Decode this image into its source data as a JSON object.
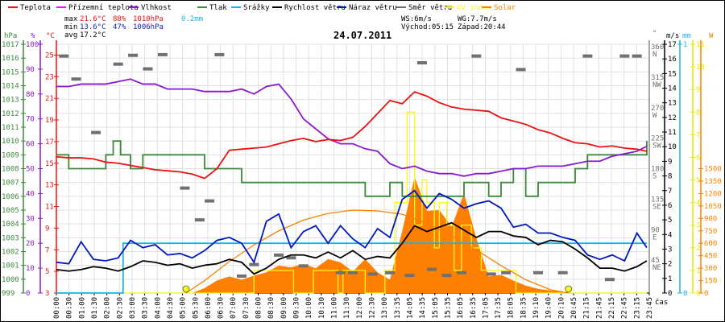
{
  "legend": [
    {
      "label": "Teplota",
      "color": "#ee1111"
    },
    {
      "label": "Přízemní teplota",
      "color": "#ee11ee"
    },
    {
      "label": "Vlhkost",
      "color": "#8a18d0"
    },
    {
      "label": "Tlak",
      "color": "#3a8a3a"
    },
    {
      "label": "Srážky",
      "color": "#18b4e8"
    },
    {
      "label": "Rychlost větru",
      "color": "#000000"
    },
    {
      "label": "Náraz větru",
      "color": "#0018c0"
    },
    {
      "label": "Směr větru",
      "color": "#707070"
    },
    {
      "label": "UV index",
      "color": "#f8f818"
    },
    {
      "label": "Solar",
      "color": "#ff8000"
    }
  ],
  "stats": {
    "max_label": "max",
    "max_temp": "21.6°C",
    "max_hum": "88%",
    "max_press": "1010hPa",
    "max_rain": "0.2mm",
    "min_label": "min",
    "min_temp": "13.6°C",
    "min_hum": "47%",
    "min_press": "1006hPa",
    "avg_label": "avg",
    "avg_temp": "17.2°C",
    "ws": "WS:6m/s",
    "wg": "WG:7.7m/s",
    "sunrise": "Východ:05:15",
    "sunset": "Západ:20:44"
  },
  "colors": {
    "temp": "#ee1111",
    "hum": "#8a18d0",
    "press": "#3a8a3a",
    "rain": "#18b4e8",
    "wind": "#000000",
    "gust": "#0018c0",
    "dir": "#707070",
    "uv": "#f8f818",
    "solar": "#ff8000",
    "solar_curve": "#ff8000",
    "grid": "#e0e0e0",
    "sun_marker": "#f8f818"
  },
  "chart_data": {
    "type": "line",
    "title": "24.07.2011",
    "xlabel": "čas",
    "x_ticks": [
      "00:00",
      "00:30",
      "01:00",
      "01:30",
      "02:00",
      "02:30",
      "03:00",
      "03:30",
      "04:00",
      "04:30",
      "05:00",
      "05:30",
      "06:00",
      "06:30",
      "07:00",
      "07:30",
      "08:00",
      "08:30",
      "09:00",
      "09:30",
      "10:00",
      "10:30",
      "11:00",
      "11:30",
      "12:00",
      "12:30",
      "13:00",
      "13:35",
      "14:05",
      "14:35",
      "15:05",
      "15:35",
      "16:05",
      "16:35",
      "17:05",
      "17:35",
      "18:05",
      "18:35",
      "19:10",
      "19:40",
      "20:10",
      "20:45",
      "21:15",
      "21:45",
      "22:15",
      "22:45",
      "23:15",
      "23:45"
    ],
    "axes": {
      "pressure": {
        "unit": "hPa",
        "range": [
          999,
          1017
        ],
        "ticks": [
          999,
          1000,
          1001,
          1002,
          1003,
          1004,
          1005,
          1006,
          1007,
          1008,
          1009,
          1010,
          1011,
          1012,
          1013,
          1014,
          1015,
          1016,
          1017
        ]
      },
      "humidity": {
        "unit": "%",
        "range": [
          0,
          100
        ],
        "ticks": [
          0,
          10,
          20,
          30,
          40,
          50,
          60,
          70,
          80,
          90,
          100
        ]
      },
      "temperature": {
        "unit": "°C",
        "range": [
          3,
          26
        ],
        "ticks": [
          3,
          5,
          7,
          9,
          11,
          13,
          15,
          17,
          19,
          21,
          23,
          25
        ]
      },
      "direction": {
        "unit": "°",
        "range": [
          0,
          360
        ],
        "ticks": [
          {
            "v": 45,
            "l": "NE"
          },
          {
            "v": 90,
            "l": "E"
          },
          {
            "v": 135,
            "l": "SE"
          },
          {
            "v": 180,
            "l": "S"
          },
          {
            "v": 225,
            "l": "SW"
          },
          {
            "v": 270,
            "l": "W"
          },
          {
            "v": 315,
            "l": "NW"
          },
          {
            "v": 360,
            "l": "N"
          }
        ]
      },
      "wind": {
        "unit": "m/s",
        "range": [
          0,
          17
        ],
        "ticks": [
          0,
          1,
          2,
          3,
          4,
          5,
          6,
          7,
          8,
          9,
          10,
          11,
          12,
          13,
          14,
          15,
          16,
          17
        ]
      },
      "rain": {
        "unit": "mm",
        "range": [
          0,
          1
        ],
        "ticks": [
          0,
          1
        ]
      },
      "uv": {
        "unit": "",
        "range": [
          0,
          11
        ],
        "ticks": [
          0,
          1,
          2,
          3,
          4,
          5,
          6,
          7,
          8,
          9,
          10,
          11
        ]
      },
      "solar": {
        "unit": "W",
        "range": [
          0,
          3000
        ],
        "ticks": [
          0,
          150,
          300,
          450,
          600,
          750,
          900,
          1050,
          1200,
          1350,
          1500
        ]
      }
    },
    "grid": true,
    "legend_position": "top",
    "series": [
      {
        "name": "Teplota",
        "axis": "temperature",
        "x": [
          0,
          0.5,
          1,
          1.5,
          2,
          2.5,
          3,
          3.5,
          4,
          4.5,
          5,
          5.5,
          6,
          6.5,
          7,
          7.5,
          8,
          8.5,
          9,
          9.5,
          10,
          10.5,
          11,
          11.5,
          12,
          12.5,
          13,
          13.5,
          14,
          14.5,
          15,
          15.5,
          16,
          16.5,
          17,
          17.5,
          18,
          18.5,
          19,
          19.5,
          20,
          20.5,
          21,
          21.5,
          22,
          22.5,
          23,
          23.5,
          23.9
        ],
        "values": [
          15.6,
          15.5,
          15.5,
          15.4,
          15.1,
          15.0,
          14.8,
          14.6,
          14.4,
          14.3,
          14.2,
          14.0,
          13.6,
          14.5,
          16.2,
          16.3,
          16.4,
          16.5,
          16.8,
          17.1,
          17.3,
          17.0,
          17.2,
          17.1,
          17.4,
          18.4,
          19.6,
          20.8,
          20.5,
          21.6,
          21.2,
          20.6,
          20.2,
          20.0,
          19.9,
          19.8,
          19.2,
          18.9,
          18.6,
          18.1,
          17.8,
          17.3,
          16.9,
          16.8,
          16.5,
          16.6,
          16.4,
          16.3,
          16.1
        ]
      },
      {
        "name": "Vlhkost",
        "axis": "humidity",
        "x": [
          0,
          0.5,
          1,
          1.5,
          2,
          2.5,
          3,
          3.5,
          4,
          4.5,
          5,
          5.5,
          6,
          6.5,
          7,
          7.5,
          8,
          8.5,
          9,
          9.5,
          10,
          10.5,
          11,
          11.5,
          12,
          12.5,
          13,
          13.5,
          14,
          14.5,
          15,
          15.5,
          16,
          16.5,
          17,
          17.5,
          18,
          18.5,
          19,
          19.5,
          20,
          20.5,
          21,
          21.5,
          22,
          22.5,
          23,
          23.5,
          23.9
        ],
        "values": [
          83,
          83,
          84,
          84,
          84,
          85,
          86,
          84,
          84,
          82,
          82,
          82,
          81,
          81,
          81,
          82,
          80,
          83,
          84,
          78,
          70,
          66,
          62,
          60,
          60,
          58,
          57,
          52,
          50,
          51,
          49,
          48,
          48,
          47,
          48,
          48,
          49,
          50,
          50,
          51,
          51,
          51,
          52,
          53,
          53,
          55,
          56,
          57,
          59
        ]
      },
      {
        "name": "Tlak",
        "axis": "pressure",
        "x": [
          0,
          0.3,
          0.5,
          1,
          1.5,
          2,
          2.3,
          2.6,
          3,
          3.5,
          4,
          4.5,
          5,
          5.5,
          6,
          6.5,
          7,
          7.5,
          8,
          8.5,
          9,
          9.5,
          10,
          10.5,
          11,
          11.5,
          12,
          12.5,
          13,
          13.5,
          14,
          14.5,
          15,
          15.5,
          16,
          16.5,
          17,
          17.5,
          18,
          18.5,
          19,
          19.5,
          20,
          20.5,
          21,
          21.5,
          22,
          22.5,
          23,
          23.5,
          23.9
        ],
        "values": [
          1009,
          1009,
          1008,
          1008,
          1008,
          1009,
          1010,
          1009,
          1008,
          1009,
          1009,
          1009,
          1009,
          1009,
          1008,
          1008,
          1008,
          1007,
          1007,
          1007,
          1007,
          1007,
          1007,
          1007,
          1007,
          1007,
          1007,
          1006,
          1006,
          1007,
          1006,
          1006,
          1006,
          1006,
          1006,
          1007,
          1007,
          1006,
          1007,
          1008,
          1006,
          1007,
          1007,
          1007,
          1008,
          1009,
          1009,
          1009,
          1009,
          1009,
          1010
        ]
      },
      {
        "name": "Srážky",
        "axis": "rain",
        "x": [
          0,
          2.6,
          2.7,
          23.9
        ],
        "values": [
          0,
          0,
          0.2,
          0.2
        ]
      },
      {
        "name": "Rychlost větru",
        "axis": "wind",
        "x": [
          0,
          0.5,
          1,
          1.5,
          2,
          2.5,
          3,
          3.5,
          4,
          4.5,
          5,
          5.5,
          6,
          6.5,
          7,
          7.5,
          8,
          8.5,
          9,
          9.5,
          10,
          10.5,
          11,
          11.5,
          12,
          12.5,
          13,
          13.5,
          14,
          14.5,
          15,
          15.5,
          16,
          16.5,
          17,
          17.5,
          18,
          18.5,
          19,
          19.5,
          20,
          20.5,
          21,
          21.5,
          22,
          22.5,
          23,
          23.5,
          23.9
        ],
        "values": [
          1.6,
          1.5,
          1.6,
          1.8,
          1.7,
          1.5,
          1.8,
          2.2,
          2.1,
          1.9,
          2.0,
          1.7,
          1.9,
          2.0,
          2.3,
          2.1,
          1.3,
          1.7,
          2.3,
          2.6,
          2.6,
          2.4,
          2.8,
          2.4,
          2.9,
          2.3,
          2.5,
          2.4,
          3.4,
          4.6,
          4.2,
          4.5,
          4.8,
          4.3,
          3.8,
          4.2,
          4.2,
          3.9,
          3.8,
          3.3,
          3.6,
          3.5,
          3.0,
          2.4,
          1.7,
          1.7,
          1.5,
          1.8,
          2.2
        ]
      },
      {
        "name": "Náraz větru",
        "axis": "wind",
        "x": [
          0,
          0.5,
          1,
          1.5,
          2,
          2.5,
          3,
          3.5,
          4,
          4.5,
          5,
          5.5,
          6,
          6.5,
          7,
          7.5,
          8,
          8.5,
          9,
          9.5,
          10,
          10.5,
          11,
          11.5,
          12,
          12.5,
          13,
          13.5,
          14,
          14.5,
          15,
          15.5,
          16,
          16.5,
          17,
          17.5,
          18,
          18.5,
          19,
          19.5,
          20,
          20.5,
          21,
          21.5,
          22,
          22.5,
          23,
          23.5,
          23.9
        ],
        "values": [
          2.1,
          2.0,
          3.5,
          2.3,
          2.2,
          2.4,
          3.6,
          3.1,
          3.3,
          2.6,
          2.7,
          2.4,
          2.9,
          3.6,
          3.8,
          3.4,
          2.1,
          4.9,
          5.4,
          3.1,
          4.2,
          4.6,
          3.4,
          4.6,
          3.7,
          3.1,
          4.4,
          3.8,
          6.4,
          7.0,
          5.8,
          6.8,
          6.4,
          5.8,
          6.1,
          6.3,
          5.8,
          4.5,
          4.7,
          4.1,
          4.1,
          3.8,
          3.6,
          2.6,
          2.3,
          2.6,
          2.2,
          4.1,
          3.1
        ]
      },
      {
        "name": "Směr větru",
        "axis": "direction",
        "type": "scatter",
        "x": [
          0.3,
          0.8,
          1.6,
          2.5,
          3.1,
          3.7,
          4.3,
          5.2,
          5.8,
          6.2,
          6.6,
          7.5,
          8.0,
          9.0,
          9.5,
          10.0,
          11.5,
          12.0,
          12.8,
          13.5,
          14.3,
          14.8,
          15.2,
          15.8,
          16.4,
          17.0,
          17.6,
          18.2,
          18.8,
          19.5,
          20.5,
          21.5,
          22.4,
          23.0,
          23.5
        ],
        "values": [
          350,
          316,
          237,
          338,
          351,
          331,
          352,
          155,
          108,
          136,
          352,
          25,
          42,
          56,
          52,
          40,
          30,
          30,
          28,
          30,
          26,
          340,
          35,
          26,
          30,
          350,
          28,
          30,
          330,
          30,
          30,
          350,
          20,
          350,
          350
        ]
      },
      {
        "name": "UV index",
        "axis": "uv",
        "x": [
          0,
          6.5,
          7.0,
          8.0,
          8.2,
          9.4,
          9.6,
          10.4,
          10.6,
          11.4,
          11.6,
          12.3,
          12.5,
          13.3,
          13.5,
          13.7,
          14.0,
          14.2,
          14.5,
          14.8,
          15.0,
          15.3,
          15.5,
          15.8,
          16.1,
          16.4,
          16.8,
          17.2,
          17.6,
          18.2,
          18.6,
          19.0,
          20.5,
          21.0,
          23.9
        ],
        "values": [
          0,
          0,
          0,
          1,
          1,
          1,
          0,
          1,
          1,
          0,
          1,
          1,
          0,
          1,
          1,
          4,
          4,
          8,
          3,
          5,
          4,
          2,
          4,
          3,
          1,
          3,
          2,
          1,
          1,
          1,
          0,
          0,
          0,
          0,
          0
        ]
      },
      {
        "name": "Solar",
        "axis": "solar",
        "type": "area",
        "x": [
          0,
          5.5,
          6.0,
          6.5,
          7,
          7.5,
          8,
          8.5,
          9,
          9.5,
          10,
          10.5,
          11,
          11.5,
          12,
          12.5,
          13,
          13.5,
          14,
          14.5,
          15,
          15.5,
          16,
          16.5,
          17,
          17.5,
          18,
          18.5,
          19,
          19.5,
          20,
          20.5,
          20.8,
          23.9
        ],
        "values": [
          0,
          0,
          60,
          150,
          200,
          160,
          210,
          250,
          330,
          310,
          350,
          300,
          410,
          370,
          260,
          410,
          250,
          160,
          750,
          1400,
          990,
          1000,
          800,
          1200,
          660,
          200,
          220,
          150,
          90,
          50,
          30,
          15,
          0,
          0
        ]
      },
      {
        "name": "Solar (clear sky)",
        "axis": "solar",
        "type": "line",
        "x": [
          5.25,
          6,
          7,
          8,
          9,
          10,
          11,
          12,
          13,
          14,
          15,
          16,
          17,
          18,
          19,
          20,
          20.73
        ],
        "values": [
          0,
          150,
          380,
          580,
          750,
          880,
          960,
          1000,
          990,
          950,
          840,
          690,
          520,
          330,
          160,
          40,
          0
        ]
      }
    ],
    "markers": [
      {
        "name": "sunrise",
        "x": 5.25
      },
      {
        "name": "sunset",
        "x": 20.73
      }
    ]
  }
}
